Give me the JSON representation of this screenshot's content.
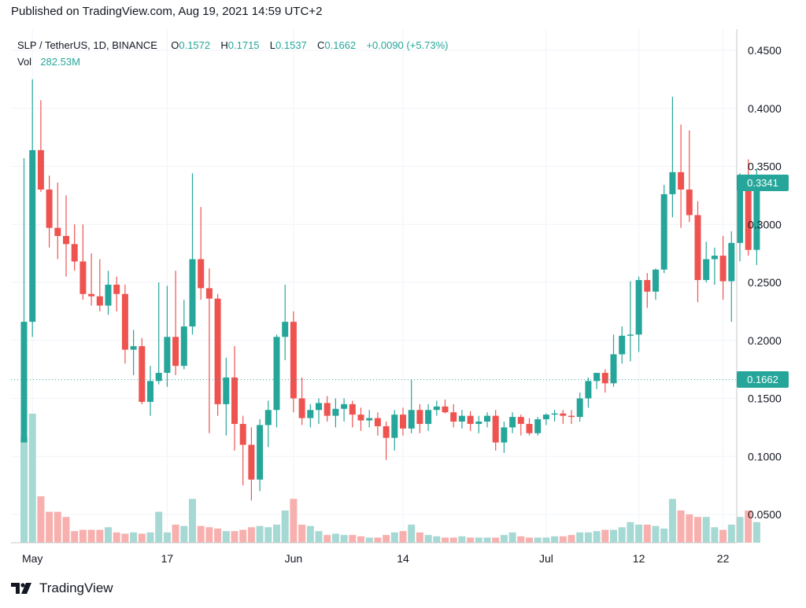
{
  "published": "Published on TradingView.com, Aug 19, 2021 14:59 UTC+2",
  "legend": {
    "symbol": "SLP / TetherUS, 1D, BINANCE",
    "o_label": "O",
    "o": "0.1572",
    "h_label": "H",
    "h": "0.1715",
    "l_label": "L",
    "l": "0.1537",
    "c_label": "C",
    "c": "0.1662",
    "change": "+0.0090 (+5.73%)",
    "vol_label": "Vol",
    "vol": "282.53M"
  },
  "brand": "TradingView",
  "colors": {
    "up": "#26a69a",
    "down": "#ef5350",
    "vol_up": "#a6d9d4",
    "vol_down": "#f7b0ae",
    "grid": "#f0f3fa"
  },
  "tags": {
    "last": "0.3341",
    "dotted": "0.1662"
  },
  "chart_data": {
    "type": "candlestick",
    "ylim": [
      0.02,
      0.47
    ],
    "y_ticks": [
      "0.4500",
      "0.4000",
      "0.3500",
      "0.3000",
      "0.2500",
      "0.2000",
      "0.1500",
      "0.1000",
      "0.0500"
    ],
    "y_tick_values": [
      0.45,
      0.4,
      0.35,
      0.3,
      0.25,
      0.2,
      0.15,
      0.1,
      0.05
    ],
    "x_ticks": [
      {
        "label": "May",
        "index": 1
      },
      {
        "label": "17",
        "index": 17
      },
      {
        "label": "Jun",
        "index": 32
      },
      {
        "label": "14",
        "index": 45
      },
      {
        "label": "Jul",
        "index": 62
      },
      {
        "label": "12",
        "index": 73
      },
      {
        "label": "22",
        "index": 83
      }
    ],
    "candles": [
      [
        0.112,
        0.357,
        0.112,
        0.216
      ],
      [
        0.216,
        0.425,
        0.203,
        0.364
      ],
      [
        0.364,
        0.407,
        0.328,
        0.33
      ],
      [
        0.33,
        0.342,
        0.28,
        0.297
      ],
      [
        0.297,
        0.336,
        0.27,
        0.29
      ],
      [
        0.29,
        0.325,
        0.255,
        0.283
      ],
      [
        0.283,
        0.3,
        0.26,
        0.268
      ],
      [
        0.268,
        0.3,
        0.235,
        0.24
      ],
      [
        0.24,
        0.275,
        0.23,
        0.238
      ],
      [
        0.238,
        0.27,
        0.225,
        0.23
      ],
      [
        0.23,
        0.26,
        0.222,
        0.248
      ],
      [
        0.248,
        0.255,
        0.225,
        0.24
      ],
      [
        0.24,
        0.248,
        0.18,
        0.192
      ],
      [
        0.192,
        0.209,
        0.17,
        0.195
      ],
      [
        0.195,
        0.202,
        0.145,
        0.147
      ],
      [
        0.147,
        0.178,
        0.135,
        0.165
      ],
      [
        0.165,
        0.25,
        0.162,
        0.172
      ],
      [
        0.172,
        0.247,
        0.16,
        0.203
      ],
      [
        0.203,
        0.26,
        0.17,
        0.178
      ],
      [
        0.178,
        0.235,
        0.175,
        0.212
      ],
      [
        0.212,
        0.344,
        0.205,
        0.27
      ],
      [
        0.27,
        0.315,
        0.235,
        0.245
      ],
      [
        0.245,
        0.262,
        0.12,
        0.236
      ],
      [
        0.236,
        0.24,
        0.135,
        0.145
      ],
      [
        0.145,
        0.185,
        0.118,
        0.168
      ],
      [
        0.168,
        0.195,
        0.105,
        0.128
      ],
      [
        0.128,
        0.135,
        0.075,
        0.11
      ],
      [
        0.11,
        0.125,
        0.062,
        0.08
      ],
      [
        0.08,
        0.132,
        0.07,
        0.127
      ],
      [
        0.127,
        0.148,
        0.108,
        0.14
      ],
      [
        0.14,
        0.205,
        0.125,
        0.203
      ],
      [
        0.203,
        0.248,
        0.183,
        0.216
      ],
      [
        0.216,
        0.225,
        0.138,
        0.15
      ],
      [
        0.15,
        0.168,
        0.127,
        0.133
      ],
      [
        0.133,
        0.145,
        0.125,
        0.14
      ],
      [
        0.14,
        0.15,
        0.128,
        0.146
      ],
      [
        0.146,
        0.152,
        0.13,
        0.135
      ],
      [
        0.135,
        0.15,
        0.125,
        0.141
      ],
      [
        0.141,
        0.15,
        0.13,
        0.145
      ],
      [
        0.145,
        0.148,
        0.125,
        0.136
      ],
      [
        0.136,
        0.142,
        0.122,
        0.131
      ],
      [
        0.131,
        0.14,
        0.125,
        0.133
      ],
      [
        0.133,
        0.138,
        0.118,
        0.126
      ],
      [
        0.126,
        0.13,
        0.097,
        0.116
      ],
      [
        0.116,
        0.14,
        0.105,
        0.136
      ],
      [
        0.136,
        0.142,
        0.118,
        0.124
      ],
      [
        0.124,
        0.166,
        0.12,
        0.14
      ],
      [
        0.14,
        0.145,
        0.12,
        0.128
      ],
      [
        0.128,
        0.145,
        0.122,
        0.14
      ],
      [
        0.14,
        0.148,
        0.135,
        0.143
      ],
      [
        0.143,
        0.149,
        0.137,
        0.138
      ],
      [
        0.138,
        0.145,
        0.125,
        0.13
      ],
      [
        0.13,
        0.14,
        0.124,
        0.135
      ],
      [
        0.135,
        0.139,
        0.122,
        0.128
      ],
      [
        0.128,
        0.135,
        0.12,
        0.13
      ],
      [
        0.13,
        0.138,
        0.125,
        0.135
      ],
      [
        0.135,
        0.14,
        0.105,
        0.112
      ],
      [
        0.112,
        0.13,
        0.103,
        0.125
      ],
      [
        0.125,
        0.138,
        0.12,
        0.134
      ],
      [
        0.134,
        0.136,
        0.118,
        0.128
      ],
      [
        0.128,
        0.133,
        0.118,
        0.12
      ],
      [
        0.12,
        0.134,
        0.118,
        0.132
      ],
      [
        0.132,
        0.137,
        0.127,
        0.136
      ],
      [
        0.136,
        0.14,
        0.13,
        0.137
      ],
      [
        0.137,
        0.14,
        0.128,
        0.135
      ],
      [
        0.135,
        0.14,
        0.128,
        0.134
      ],
      [
        0.134,
        0.155,
        0.13,
        0.15
      ],
      [
        0.15,
        0.168,
        0.142,
        0.165
      ],
      [
        0.165,
        0.172,
        0.158,
        0.172
      ],
      [
        0.172,
        0.175,
        0.155,
        0.163
      ],
      [
        0.163,
        0.205,
        0.16,
        0.188
      ],
      [
        0.188,
        0.212,
        0.18,
        0.204
      ],
      [
        0.204,
        0.251,
        0.182,
        0.205
      ],
      [
        0.205,
        0.255,
        0.19,
        0.252
      ],
      [
        0.252,
        0.258,
        0.228,
        0.242
      ],
      [
        0.242,
        0.262,
        0.235,
        0.261
      ],
      [
        0.261,
        0.334,
        0.258,
        0.326
      ],
      [
        0.326,
        0.41,
        0.306,
        0.345
      ],
      [
        0.345,
        0.386,
        0.297,
        0.33
      ],
      [
        0.33,
        0.381,
        0.302,
        0.308
      ],
      [
        0.308,
        0.32,
        0.233,
        0.252
      ],
      [
        0.252,
        0.285,
        0.25,
        0.27
      ],
      [
        0.27,
        0.28,
        0.248,
        0.273
      ],
      [
        0.273,
        0.29,
        0.235,
        0.251
      ],
      [
        0.251,
        0.294,
        0.216,
        0.284
      ],
      [
        0.284,
        0.344,
        0.268,
        0.336
      ],
      [
        0.336,
        0.356,
        0.273,
        0.278
      ],
      [
        0.278,
        0.348,
        0.265,
        0.336
      ]
    ],
    "volume_ratio": [
      0.82,
      1.0,
      0.36,
      0.24,
      0.24,
      0.2,
      0.09,
      0.1,
      0.1,
      0.1,
      0.12,
      0.08,
      0.07,
      0.08,
      0.07,
      0.08,
      0.24,
      0.08,
      0.14,
      0.13,
      0.34,
      0.13,
      0.12,
      0.11,
      0.09,
      0.09,
      0.1,
      0.12,
      0.13,
      0.12,
      0.14,
      0.25,
      0.34,
      0.14,
      0.13,
      0.09,
      0.06,
      0.07,
      0.06,
      0.06,
      0.05,
      0.04,
      0.04,
      0.06,
      0.08,
      0.09,
      0.14,
      0.08,
      0.06,
      0.05,
      0.04,
      0.04,
      0.05,
      0.04,
      0.04,
      0.04,
      0.04,
      0.06,
      0.08,
      0.05,
      0.04,
      0.04,
      0.04,
      0.05,
      0.05,
      0.06,
      0.08,
      0.08,
      0.09,
      0.1,
      0.1,
      0.12,
      0.16,
      0.14,
      0.14,
      0.13,
      0.11,
      0.34,
      0.25,
      0.22,
      0.2,
      0.2,
      0.12,
      0.1,
      0.14,
      0.2,
      0.25,
      0.16
    ]
  }
}
